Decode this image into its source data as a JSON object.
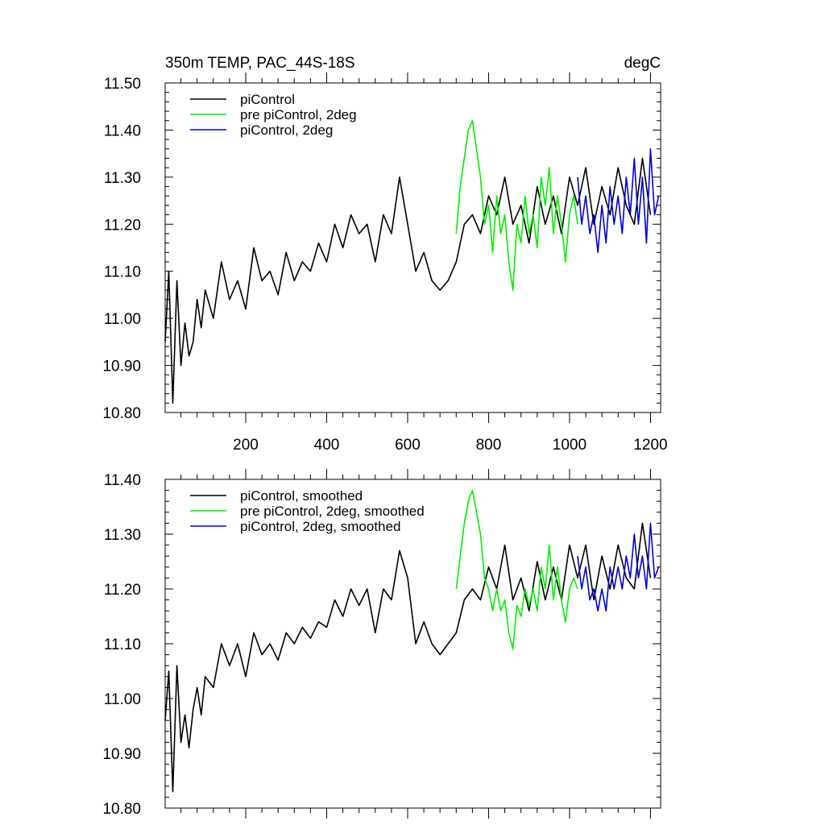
{
  "figure": {
    "title_left": "350m TEMP, PAC_44S-18S",
    "title_right": "degC"
  },
  "chart_data": [
    {
      "type": "line",
      "title": "350m TEMP, PAC_44S-18S",
      "units": "degC",
      "xlim": [
        1,
        1225
      ],
      "ylim": [
        10.8,
        11.5
      ],
      "x_ticks": [
        200,
        400,
        600,
        800,
        1000,
        1200
      ],
      "x_tick_labels": [
        "200",
        "400",
        "600",
        "800",
        "1000",
        "1200"
      ],
      "y_ticks": [
        10.8,
        10.9,
        11.0,
        11.1,
        11.2,
        11.3,
        11.4,
        11.5
      ],
      "y_tick_labels": [
        "10.80",
        "10.90",
        "11.00",
        "11.10",
        "11.20",
        "11.30",
        "11.40",
        "11.50"
      ],
      "grid": false,
      "legend_position": "top-left",
      "series": [
        {
          "name": "piControl",
          "color": "#000000",
          "x": [
            1,
            10,
            20,
            30,
            40,
            50,
            60,
            70,
            80,
            90,
            100,
            120,
            140,
            160,
            180,
            200,
            220,
            240,
            260,
            280,
            300,
            320,
            340,
            360,
            380,
            400,
            420,
            440,
            460,
            480,
            500,
            520,
            540,
            560,
            580,
            600,
            620,
            640,
            660,
            680,
            700,
            720,
            740,
            760,
            780,
            800,
            820,
            840,
            860,
            880,
            900,
            920,
            940,
            960,
            980,
            1000,
            1020,
            1040,
            1060,
            1080,
            1100,
            1120,
            1140,
            1160,
            1180,
            1200
          ],
          "values": [
            10.95,
            11.1,
            10.82,
            11.08,
            10.9,
            10.99,
            10.92,
            10.95,
            11.04,
            10.98,
            11.06,
            11.0,
            11.12,
            11.04,
            11.08,
            11.02,
            11.15,
            11.08,
            11.1,
            11.05,
            11.14,
            11.08,
            11.12,
            11.1,
            11.16,
            11.12,
            11.2,
            11.15,
            11.22,
            11.18,
            11.2,
            11.12,
            11.22,
            11.18,
            11.3,
            11.2,
            11.1,
            11.14,
            11.08,
            11.06,
            11.08,
            11.12,
            11.2,
            11.22,
            11.18,
            11.26,
            11.22,
            11.3,
            11.2,
            11.24,
            11.16,
            11.28,
            11.2,
            11.26,
            11.18,
            11.3,
            11.24,
            11.32,
            11.2,
            11.28,
            11.22,
            11.32,
            11.24,
            11.2,
            11.34,
            11.22
          ]
        },
        {
          "name": "pre piControl, 2deg",
          "color": "#00ee00",
          "x": [
            720,
            730,
            740,
            750,
            760,
            770,
            780,
            790,
            800,
            810,
            820,
            830,
            840,
            850,
            860,
            870,
            880,
            890,
            900,
            910,
            920,
            930,
            940,
            950,
            960,
            970,
            980,
            990,
            1000,
            1010,
            1020
          ],
          "values": [
            11.18,
            11.28,
            11.34,
            11.4,
            11.42,
            11.36,
            11.3,
            11.2,
            11.24,
            11.14,
            11.26,
            11.18,
            11.22,
            11.12,
            11.06,
            11.2,
            11.16,
            11.26,
            11.18,
            11.22,
            11.15,
            11.3,
            11.24,
            11.32,
            11.18,
            11.26,
            11.2,
            11.12,
            11.22,
            11.26,
            11.2
          ]
        },
        {
          "name": "piControl, 2deg",
          "color": "#0000dd",
          "x": [
            1020,
            1030,
            1040,
            1050,
            1060,
            1070,
            1080,
            1090,
            1100,
            1110,
            1120,
            1130,
            1140,
            1150,
            1160,
            1170,
            1180,
            1190,
            1200,
            1210,
            1220
          ],
          "values": [
            11.3,
            11.2,
            11.26,
            11.18,
            11.22,
            11.14,
            11.24,
            11.16,
            11.28,
            11.2,
            11.26,
            11.18,
            11.3,
            11.22,
            11.34,
            11.2,
            11.3,
            11.16,
            11.36,
            11.22,
            11.26
          ]
        }
      ]
    },
    {
      "type": "line",
      "xlim": [
        1,
        1225
      ],
      "ylim": [
        10.8,
        11.4
      ],
      "x_ticks": [
        200,
        400,
        600,
        800,
        1000,
        1200
      ],
      "y_ticks": [
        10.8,
        10.9,
        11.0,
        11.1,
        11.2,
        11.3,
        11.4
      ],
      "y_tick_labels": [
        "10.80",
        "10.90",
        "11.00",
        "11.10",
        "11.20",
        "11.30",
        "11.40"
      ],
      "grid": false,
      "legend_position": "top-left",
      "series": [
        {
          "name": "piControl, smoothed",
          "color": "#000000",
          "x": [
            1,
            10,
            20,
            30,
            40,
            50,
            60,
            70,
            80,
            90,
            100,
            120,
            140,
            160,
            180,
            200,
            220,
            240,
            260,
            280,
            300,
            320,
            340,
            360,
            380,
            400,
            420,
            440,
            460,
            480,
            500,
            520,
            540,
            560,
            580,
            600,
            620,
            640,
            660,
            680,
            700,
            720,
            740,
            760,
            780,
            800,
            820,
            840,
            860,
            880,
            900,
            920,
            940,
            960,
            980,
            1000,
            1020,
            1040,
            1060,
            1080,
            1100,
            1120,
            1140,
            1160,
            1180,
            1200
          ],
          "values": [
            10.96,
            11.05,
            10.83,
            11.06,
            10.92,
            10.97,
            10.91,
            10.98,
            11.02,
            10.97,
            11.04,
            11.02,
            11.1,
            11.06,
            11.1,
            11.04,
            11.12,
            11.08,
            11.1,
            11.07,
            11.12,
            11.1,
            11.13,
            11.11,
            11.14,
            11.13,
            11.18,
            11.15,
            11.2,
            11.17,
            11.2,
            11.12,
            11.2,
            11.18,
            11.27,
            11.22,
            11.1,
            11.14,
            11.1,
            11.08,
            11.1,
            11.12,
            11.18,
            11.2,
            11.18,
            11.24,
            11.2,
            11.28,
            11.18,
            11.22,
            11.16,
            11.25,
            11.18,
            11.24,
            11.18,
            11.28,
            11.22,
            11.28,
            11.18,
            11.26,
            11.2,
            11.28,
            11.22,
            11.2,
            11.32,
            11.22
          ]
        },
        {
          "name": "pre piControl, 2deg, smoothed",
          "color": "#00ee00",
          "x": [
            720,
            730,
            740,
            750,
            760,
            770,
            780,
            790,
            800,
            810,
            820,
            830,
            840,
            850,
            860,
            870,
            880,
            890,
            900,
            910,
            920,
            930,
            940,
            950,
            960,
            970,
            980,
            990,
            1000,
            1010,
            1020
          ],
          "values": [
            11.2,
            11.26,
            11.32,
            11.36,
            11.38,
            11.34,
            11.3,
            11.22,
            11.2,
            11.16,
            11.2,
            11.16,
            11.18,
            11.12,
            11.09,
            11.17,
            11.15,
            11.2,
            11.17,
            11.2,
            11.16,
            11.24,
            11.2,
            11.28,
            11.18,
            11.24,
            11.18,
            11.14,
            11.2,
            11.22,
            11.2
          ]
        },
        {
          "name": "piControl, 2deg, smoothed",
          "color": "#0000dd",
          "x": [
            1020,
            1030,
            1040,
            1050,
            1060,
            1070,
            1080,
            1090,
            1100,
            1110,
            1120,
            1130,
            1140,
            1150,
            1160,
            1170,
            1180,
            1190,
            1200,
            1210,
            1220
          ],
          "values": [
            11.26,
            11.2,
            11.24,
            11.18,
            11.2,
            11.16,
            11.2,
            11.16,
            11.24,
            11.2,
            11.24,
            11.2,
            11.26,
            11.22,
            11.3,
            11.22,
            11.26,
            11.2,
            11.32,
            11.22,
            11.24
          ]
        }
      ]
    }
  ]
}
